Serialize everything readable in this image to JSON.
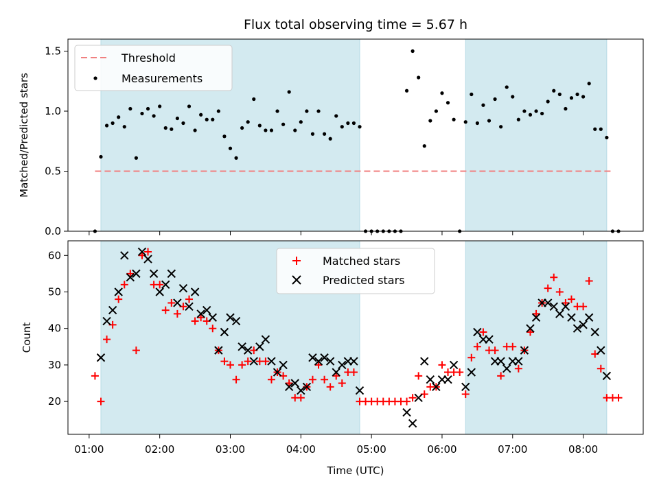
{
  "chart_data": [
    {
      "type": "scatter",
      "title": "Flux total observing time = 5.67 h",
      "xlabel": "",
      "ylabel": "Matched/Predicted stars",
      "ylim": [
        0,
        1.6
      ],
      "yticks": [
        "0.0",
        "0.5",
        "1.0",
        "1.5"
      ],
      "legend_position": "top-left",
      "threshold": {
        "name": "Threshold",
        "y": 0.5,
        "x_range": [
          "01:05",
          "08:25"
        ],
        "color": "#f08080"
      },
      "series": [
        {
          "name": "Measurements",
          "color": "#000000",
          "points": [
            [
              "01:05",
              0
            ],
            [
              "01:10",
              0.62
            ],
            [
              "01:15",
              0.88
            ],
            [
              "01:20",
              0.9
            ],
            [
              "01:25",
              0.95
            ],
            [
              "01:30",
              0.87
            ],
            [
              "01:35",
              1.02
            ],
            [
              "01:40",
              0.61
            ],
            [
              "01:45",
              0.98
            ],
            [
              "01:50",
              1.02
            ],
            [
              "01:55",
              0.96
            ],
            [
              "02:00",
              1.04
            ],
            [
              "02:05",
              0.86
            ],
            [
              "02:10",
              0.85
            ],
            [
              "02:15",
              0.94
            ],
            [
              "02:20",
              0.9
            ],
            [
              "02:25",
              1.04
            ],
            [
              "02:30",
              0.84
            ],
            [
              "02:35",
              0.97
            ],
            [
              "02:40",
              0.93
            ],
            [
              "02:45",
              0.93
            ],
            [
              "02:50",
              1.0
            ],
            [
              "02:55",
              0.79
            ],
            [
              "03:00",
              0.69
            ],
            [
              "03:05",
              0.61
            ],
            [
              "03:10",
              0.86
            ],
            [
              "03:15",
              0.91
            ],
            [
              "03:20",
              1.1
            ],
            [
              "03:25",
              0.88
            ],
            [
              "03:30",
              0.84
            ],
            [
              "03:35",
              0.84
            ],
            [
              "03:40",
              1.0
            ],
            [
              "03:45",
              0.89
            ],
            [
              "03:50",
              1.16
            ],
            [
              "03:55",
              0.84
            ],
            [
              "04:00",
              0.91
            ],
            [
              "04:05",
              1.0
            ],
            [
              "04:10",
              0.81
            ],
            [
              "04:15",
              1.0
            ],
            [
              "04:20",
              0.81
            ],
            [
              "04:25",
              0.77
            ],
            [
              "04:30",
              0.96
            ],
            [
              "04:35",
              0.87
            ],
            [
              "04:40",
              0.9
            ],
            [
              "04:45",
              0.9
            ],
            [
              "04:50",
              0.87
            ],
            [
              "04:55",
              0
            ],
            [
              "05:00",
              0
            ],
            [
              "05:05",
              0
            ],
            [
              "05:10",
              0
            ],
            [
              "05:15",
              0
            ],
            [
              "05:20",
              0
            ],
            [
              "05:25",
              0
            ],
            [
              "05:30",
              1.17
            ],
            [
              "05:35",
              1.5
            ],
            [
              "05:40",
              1.28
            ],
            [
              "05:45",
              0.71
            ],
            [
              "05:50",
              0.92
            ],
            [
              "05:55",
              1.0
            ],
            [
              "06:00",
              1.15
            ],
            [
              "06:05",
              1.07
            ],
            [
              "06:10",
              0.93
            ],
            [
              "06:15",
              0
            ],
            [
              "06:20",
              0.91
            ],
            [
              "06:25",
              1.14
            ],
            [
              "06:30",
              0.9
            ],
            [
              "06:35",
              1.05
            ],
            [
              "06:40",
              0.92
            ],
            [
              "06:45",
              1.1
            ],
            [
              "06:50",
              0.87
            ],
            [
              "06:55",
              1.2
            ],
            [
              "07:00",
              1.12
            ],
            [
              "07:05",
              0.93
            ],
            [
              "07:10",
              1.0
            ],
            [
              "07:15",
              0.97
            ],
            [
              "07:20",
              1.0
            ],
            [
              "07:25",
              0.98
            ],
            [
              "07:30",
              1.08
            ],
            [
              "07:35",
              1.17
            ],
            [
              "07:40",
              1.14
            ],
            [
              "07:45",
              1.02
            ],
            [
              "07:50",
              1.11
            ],
            [
              "07:55",
              1.14
            ],
            [
              "08:00",
              1.12
            ],
            [
              "08:05",
              1.23
            ],
            [
              "08:10",
              0.85
            ],
            [
              "08:15",
              0.85
            ],
            [
              "08:20",
              0.78
            ],
            [
              "08:25",
              0
            ],
            [
              "08:30",
              0
            ]
          ]
        }
      ]
    },
    {
      "type": "scatter",
      "xlabel": "Time (UTC)",
      "ylabel": "Count",
      "ylim": [
        11,
        64
      ],
      "yticks": [
        "20",
        "30",
        "40",
        "50",
        "60"
      ],
      "xticks": [
        "01:00",
        "02:00",
        "03:00",
        "04:00",
        "05:00",
        "06:00",
        "07:00",
        "08:00"
      ],
      "xlim": [
        "00:42",
        "08:51"
      ],
      "legend_position": "top-center",
      "series": [
        {
          "name": "Matched stars",
          "color": "#ff0000",
          "points": [
            [
              "01:05",
              27
            ],
            [
              "01:10",
              20
            ],
            [
              "01:15",
              37
            ],
            [
              "01:20",
              41
            ],
            [
              "01:25",
              48
            ],
            [
              "01:30",
              52
            ],
            [
              "01:35",
              55
            ],
            [
              "01:40",
              34
            ],
            [
              "01:45",
              60
            ],
            [
              "01:50",
              61
            ],
            [
              "01:55",
              52
            ],
            [
              "02:00",
              52
            ],
            [
              "02:05",
              45
            ],
            [
              "02:10",
              47
            ],
            [
              "02:15",
              44
            ],
            [
              "02:20",
              46
            ],
            [
              "02:25",
              48
            ],
            [
              "02:30",
              42
            ],
            [
              "02:35",
              43
            ],
            [
              "02:40",
              42
            ],
            [
              "02:45",
              40
            ],
            [
              "02:50",
              34
            ],
            [
              "02:55",
              31
            ],
            [
              "03:00",
              30
            ],
            [
              "03:05",
              26
            ],
            [
              "03:10",
              30
            ],
            [
              "03:15",
              31
            ],
            [
              "03:20",
              34
            ],
            [
              "03:25",
              31
            ],
            [
              "03:30",
              31
            ],
            [
              "03:35",
              26
            ],
            [
              "03:40",
              28
            ],
            [
              "03:45",
              27
            ],
            [
              "03:50",
              25
            ],
            [
              "03:55",
              21
            ],
            [
              "04:00",
              21
            ],
            [
              "04:05",
              24
            ],
            [
              "04:10",
              26
            ],
            [
              "04:15",
              30
            ],
            [
              "04:20",
              26
            ],
            [
              "04:25",
              24
            ],
            [
              "04:30",
              27
            ],
            [
              "04:35",
              25
            ],
            [
              "04:40",
              28
            ],
            [
              "04:45",
              28
            ],
            [
              "04:50",
              20
            ],
            [
              "04:55",
              20
            ],
            [
              "05:00",
              20
            ],
            [
              "05:05",
              20
            ],
            [
              "05:10",
              20
            ],
            [
              "05:15",
              20
            ],
            [
              "05:20",
              20
            ],
            [
              "05:25",
              20
            ],
            [
              "05:30",
              20
            ],
            [
              "05:35",
              21
            ],
            [
              "05:40",
              27
            ],
            [
              "05:45",
              22
            ],
            [
              "05:50",
              24
            ],
            [
              "05:55",
              24
            ],
            [
              "06:00",
              30
            ],
            [
              "06:05",
              28
            ],
            [
              "06:10",
              28
            ],
            [
              "06:15",
              28
            ],
            [
              "06:20",
              22
            ],
            [
              "06:25",
              32
            ],
            [
              "06:30",
              35
            ],
            [
              "06:35",
              39
            ],
            [
              "06:40",
              34
            ],
            [
              "06:45",
              34
            ],
            [
              "06:50",
              27
            ],
            [
              "06:55",
              35
            ],
            [
              "07:00",
              35
            ],
            [
              "07:05",
              29
            ],
            [
              "07:10",
              34
            ],
            [
              "07:15",
              39
            ],
            [
              "07:20",
              44
            ],
            [
              "07:25",
              47
            ],
            [
              "07:30",
              51
            ],
            [
              "07:35",
              54
            ],
            [
              "07:40",
              50
            ],
            [
              "07:45",
              47
            ],
            [
              "07:50",
              48
            ],
            [
              "07:55",
              46
            ],
            [
              "08:00",
              46
            ],
            [
              "08:05",
              53
            ],
            [
              "08:10",
              33
            ],
            [
              "08:15",
              29
            ],
            [
              "08:20",
              21
            ],
            [
              "08:25",
              21
            ],
            [
              "08:30",
              21
            ]
          ]
        },
        {
          "name": "Predicted stars",
          "color": "#000000",
          "points": [
            [
              "01:10",
              32
            ],
            [
              "01:15",
              42
            ],
            [
              "01:20",
              45
            ],
            [
              "01:25",
              50
            ],
            [
              "01:30",
              60
            ],
            [
              "01:35",
              54
            ],
            [
              "01:40",
              55
            ],
            [
              "01:45",
              61
            ],
            [
              "01:50",
              59
            ],
            [
              "01:55",
              55
            ],
            [
              "02:00",
              50
            ],
            [
              "02:05",
              52
            ],
            [
              "02:10",
              55
            ],
            [
              "02:15",
              47
            ],
            [
              "02:20",
              51
            ],
            [
              "02:25",
              46
            ],
            [
              "02:30",
              50
            ],
            [
              "02:35",
              44
            ],
            [
              "02:40",
              45
            ],
            [
              "02:45",
              43
            ],
            [
              "02:50",
              34
            ],
            [
              "02:55",
              39
            ],
            [
              "03:00",
              43
            ],
            [
              "03:05",
              42
            ],
            [
              "03:10",
              35
            ],
            [
              "03:15",
              34
            ],
            [
              "03:20",
              31
            ],
            [
              "03:25",
              35
            ],
            [
              "03:30",
              37
            ],
            [
              "03:35",
              31
            ],
            [
              "03:40",
              28
            ],
            [
              "03:45",
              30
            ],
            [
              "03:50",
              24
            ],
            [
              "03:55",
              25
            ],
            [
              "04:00",
              23
            ],
            [
              "04:05",
              24
            ],
            [
              "04:10",
              32
            ],
            [
              "04:15",
              31
            ],
            [
              "04:20",
              32
            ],
            [
              "04:25",
              31
            ],
            [
              "04:30",
              28
            ],
            [
              "04:35",
              30
            ],
            [
              "04:40",
              31
            ],
            [
              "04:45",
              31
            ],
            [
              "04:50",
              23
            ],
            [
              "05:30",
              17
            ],
            [
              "05:35",
              14
            ],
            [
              "05:40",
              21
            ],
            [
              "05:45",
              31
            ],
            [
              "05:50",
              26
            ],
            [
              "05:55",
              24
            ],
            [
              "06:00",
              26
            ],
            [
              "06:05",
              26
            ],
            [
              "06:10",
              30
            ],
            [
              "06:20",
              24
            ],
            [
              "06:25",
              28
            ],
            [
              "06:30",
              39
            ],
            [
              "06:35",
              37
            ],
            [
              "06:40",
              37
            ],
            [
              "06:45",
              31
            ],
            [
              "06:50",
              31
            ],
            [
              "06:55",
              29
            ],
            [
              "07:00",
              31
            ],
            [
              "07:05",
              31
            ],
            [
              "07:10",
              34
            ],
            [
              "07:15",
              40
            ],
            [
              "07:20",
              43
            ],
            [
              "07:25",
              47
            ],
            [
              "07:30",
              47
            ],
            [
              "07:35",
              46
            ],
            [
              "07:40",
              44
            ],
            [
              "07:45",
              46
            ],
            [
              "07:50",
              43
            ],
            [
              "07:55",
              40
            ],
            [
              "08:00",
              41
            ],
            [
              "08:05",
              43
            ],
            [
              "08:10",
              39
            ],
            [
              "08:15",
              34
            ],
            [
              "08:20",
              27
            ]
          ]
        }
      ]
    }
  ],
  "shaded_intervals": [
    [
      "01:10",
      "04:50"
    ],
    [
      "06:20",
      "08:20"
    ]
  ],
  "shade_color": "#d3eaf0"
}
